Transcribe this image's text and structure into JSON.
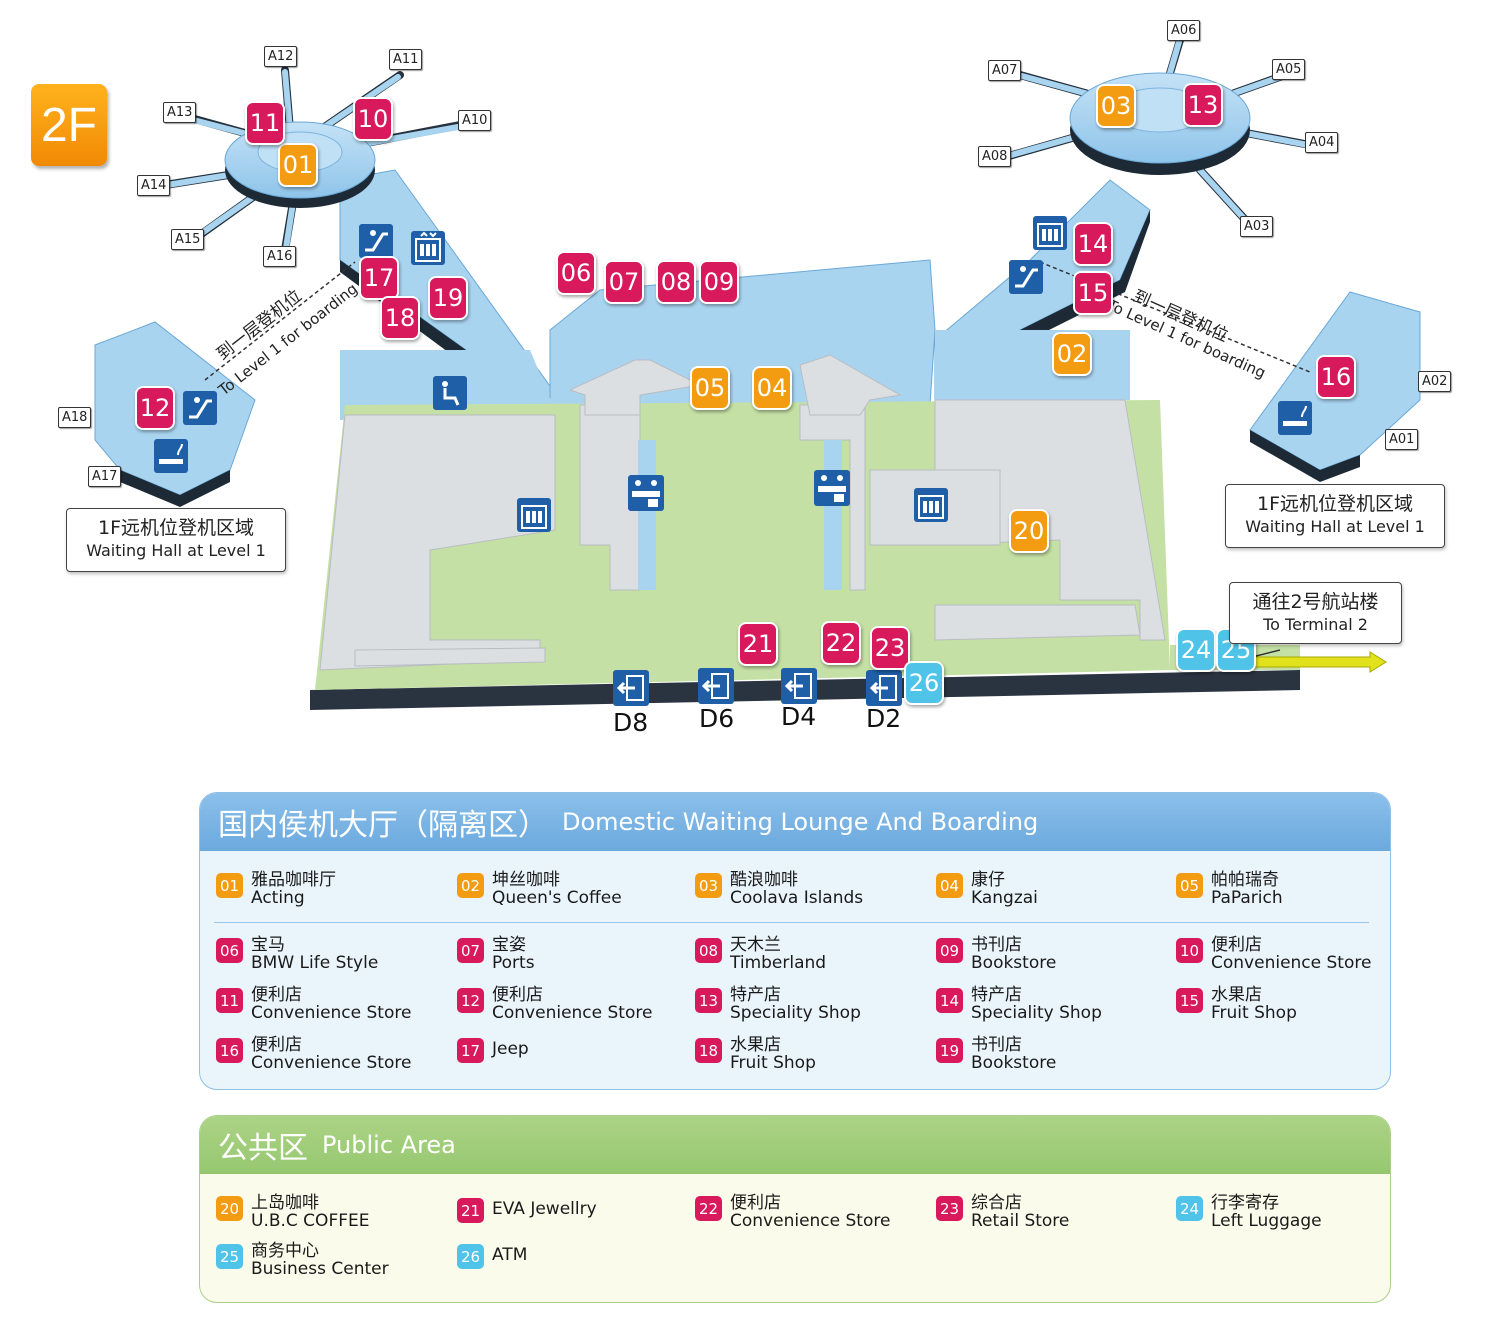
{
  "floor": "2F",
  "colors": {
    "pink": "#d8195c",
    "orange": "#f39c12",
    "cyan": "#4fc3e8",
    "blue_floor": "#a9d4f0",
    "green_floor": "#c4e0a4",
    "gray_floor": "#dcdfe2"
  },
  "gates": [
    "A12",
    "A11",
    "A13",
    "A10",
    "A14",
    "A15",
    "A16",
    "A18",
    "A17",
    "A06",
    "A07",
    "A05",
    "A08",
    "A04",
    "A03",
    "A02",
    "A01"
  ],
  "doors": [
    "D8",
    "D6",
    "D4",
    "D2"
  ],
  "map_badges": {
    "b01": "01",
    "b02": "02",
    "b03": "03",
    "b04": "04",
    "b05": "05",
    "b06": "06",
    "b07": "07",
    "b08": "08",
    "b09": "09",
    "b10": "10",
    "b11": "11",
    "b12": "12",
    "b13": "13",
    "b14": "14",
    "b15": "15",
    "b16": "16",
    "b17": "17",
    "b18": "18",
    "b19": "19",
    "b20": "20",
    "b21": "21",
    "b22": "22",
    "b23": "23",
    "b24": "24",
    "b25": "25",
    "b26": "26"
  },
  "callouts": {
    "left": {
      "cn": "1F远机位登机区域",
      "en": "Waiting Hall at Level 1"
    },
    "right": {
      "cn": "1F远机位登机区域",
      "en": "Waiting Hall at Level 1"
    },
    "terminal": {
      "cn": "通往2号航站楼",
      "en": "To Terminal 2"
    }
  },
  "boarding_left": {
    "cn": "到一层登机位",
    "en": "To Level 1 for boarding"
  },
  "boarding_right": {
    "cn": "到一层登机位",
    "en": "To Level 1 for boarding"
  },
  "domestic": {
    "title_cn": "国内侯机大厅（隔离区）",
    "title_en": "Domestic Waiting Lounge And Boarding",
    "items": [
      {
        "num": "01",
        "cn": "雅品咖啡厅",
        "en": "Acting",
        "color": "orange"
      },
      {
        "num": "02",
        "cn": "坤丝咖啡",
        "en": "Queen's Coffee",
        "color": "orange"
      },
      {
        "num": "03",
        "cn": "酷浪咖啡",
        "en": "Coolava Islands",
        "color": "orange"
      },
      {
        "num": "04",
        "cn": "康仔",
        "en": "Kangzai",
        "color": "orange"
      },
      {
        "num": "05",
        "cn": "帕帕瑞奇",
        "en": "PaParich",
        "color": "orange"
      },
      {
        "num": "06",
        "cn": "宝马",
        "en": "BMW Life Style",
        "color": "pink"
      },
      {
        "num": "07",
        "cn": "宝姿",
        "en": "Ports",
        "color": "pink"
      },
      {
        "num": "08",
        "cn": "天木兰",
        "en": "Timberland",
        "color": "pink"
      },
      {
        "num": "09",
        "cn": "书刊店",
        "en": "Bookstore",
        "color": "pink"
      },
      {
        "num": "10",
        "cn": "便利店",
        "en": "Convenience Store",
        "color": "pink"
      },
      {
        "num": "11",
        "cn": "便利店",
        "en": "Convenience Store",
        "color": "pink"
      },
      {
        "num": "12",
        "cn": "便利店",
        "en": "Convenience Store",
        "color": "pink"
      },
      {
        "num": "13",
        "cn": "特产店",
        "en": "Speciality Shop",
        "color": "pink"
      },
      {
        "num": "14",
        "cn": "特产店",
        "en": "Speciality Shop",
        "color": "pink"
      },
      {
        "num": "15",
        "cn": "水果店",
        "en": "Fruit Shop",
        "color": "pink"
      },
      {
        "num": "16",
        "cn": "便利店",
        "en": "Convenience Store",
        "color": "pink"
      },
      {
        "num": "17",
        "cn": "",
        "en": "Jeep",
        "color": "pink"
      },
      {
        "num": "18",
        "cn": "水果店",
        "en": "Fruit Shop",
        "color": "pink"
      },
      {
        "num": "19",
        "cn": "书刊店",
        "en": "Bookstore",
        "color": "pink"
      }
    ]
  },
  "public": {
    "title_cn": "公共区",
    "title_en": "Public Area",
    "items": [
      {
        "num": "20",
        "cn": "上岛咖啡",
        "en": "U.B.C COFFEE",
        "color": "orange"
      },
      {
        "num": "21",
        "cn": "",
        "en": "EVA Jewellry",
        "color": "pink"
      },
      {
        "num": "22",
        "cn": "便利店",
        "en": "Convenience Store",
        "color": "pink"
      },
      {
        "num": "23",
        "cn": "综合店",
        "en": "Retail Store",
        "color": "pink"
      },
      {
        "num": "24",
        "cn": "行李寄存",
        "en": "Left Luggage",
        "color": "cyan"
      },
      {
        "num": "25",
        "cn": "商务中心",
        "en": "Business Center",
        "color": "cyan"
      },
      {
        "num": "26",
        "cn": "",
        "en": "ATM",
        "color": "cyan"
      }
    ]
  }
}
